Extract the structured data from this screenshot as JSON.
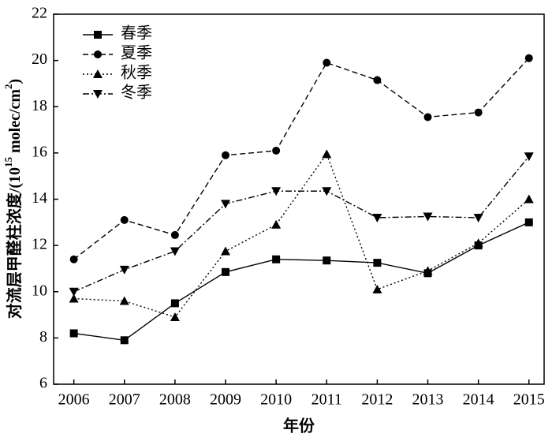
{
  "chart_data": {
    "type": "line",
    "x_label": "年份",
    "y_label": [
      "对流层甲醛柱浓度/(10",
      "15",
      " molec/cm",
      "2",
      ")"
    ],
    "x": [
      2006,
      2007,
      2008,
      2009,
      2010,
      2011,
      2012,
      2013,
      2014,
      2015
    ],
    "xlim": [
      2005.6,
      2015.3
    ],
    "xticks": [
      2006,
      2007,
      2008,
      2009,
      2010,
      2011,
      2012,
      2013,
      2014,
      2015
    ],
    "ylim": [
      6,
      22
    ],
    "yticks": [
      6,
      8,
      10,
      12,
      14,
      16,
      18,
      20,
      22
    ],
    "legend": "upper-left",
    "series": [
      {
        "name": "春季",
        "color": "#000000",
        "dash": "solid",
        "marker": "square",
        "values": [
          8.2,
          7.9,
          9.5,
          10.85,
          11.4,
          11.35,
          11.25,
          10.8,
          12.0,
          13.0
        ]
      },
      {
        "name": "夏季",
        "color": "#000000",
        "dash": "dashed",
        "marker": "circle",
        "values": [
          11.4,
          13.1,
          12.45,
          15.9,
          16.1,
          19.9,
          19.15,
          17.55,
          17.75,
          20.1
        ]
      },
      {
        "name": "秋季",
        "color": "#000000",
        "dash": "dotted",
        "marker": "triangle-up",
        "values": [
          9.7,
          9.6,
          8.9,
          11.75,
          12.9,
          15.95,
          10.1,
          10.9,
          12.1,
          14.0
        ]
      },
      {
        "name": "冬季",
        "color": "#000000",
        "dash": "dashdot",
        "marker": "triangle-down",
        "values": [
          10.0,
          10.95,
          11.75,
          13.8,
          14.35,
          14.35,
          13.2,
          13.25,
          13.2,
          15.85
        ]
      }
    ]
  }
}
